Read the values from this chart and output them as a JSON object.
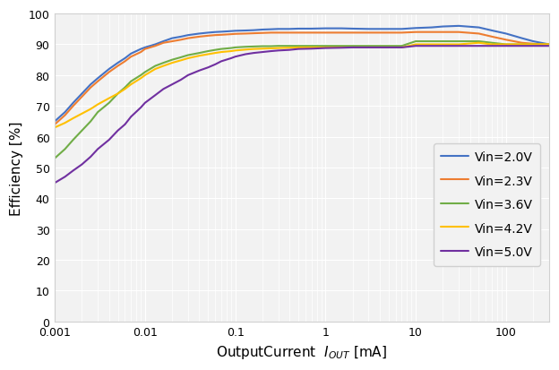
{
  "title": "",
  "xlabel_prefix": "OutputCurrent  ",
  "xlabel_sub": "OUT",
  "xlabel_suffix": " [mA]",
  "ylabel": "Efficiency [%]",
  "xlim": [
    0.001,
    300
  ],
  "ylim": [
    0,
    100
  ],
  "yticks": [
    0,
    10,
    20,
    30,
    40,
    50,
    60,
    70,
    80,
    90,
    100
  ],
  "xtick_labels": {
    "0.001": "0.001",
    "0.01": "0.01",
    "0.1": "0.1",
    "1.0": "1",
    "10.0": "10",
    "100.0": "100"
  },
  "background_color": "#ffffff",
  "plot_bg_color": "#f2f2f2",
  "grid_color": "#ffffff",
  "series": [
    {
      "label": "Vin=2.0V",
      "color": "#4472C4",
      "x": [
        0.001,
        0.0013,
        0.0016,
        0.002,
        0.0025,
        0.003,
        0.004,
        0.005,
        0.006,
        0.007,
        0.009,
        0.01,
        0.013,
        0.016,
        0.02,
        0.025,
        0.03,
        0.04,
        0.05,
        0.06,
        0.07,
        0.09,
        0.1,
        0.13,
        0.16,
        0.2,
        0.25,
        0.3,
        0.4,
        0.5,
        0.7,
        1.0,
        1.5,
        2.0,
        3.0,
        5.0,
        7.0,
        10.0,
        15.0,
        20.0,
        30.0,
        50.0,
        70.0,
        100.0,
        150.0,
        200.0,
        300.0
      ],
      "y": [
        65,
        68,
        71,
        74,
        77,
        79,
        82,
        84,
        85.5,
        87,
        88.5,
        89,
        90,
        91,
        92,
        92.5,
        93,
        93.5,
        93.8,
        94,
        94.1,
        94.3,
        94.4,
        94.5,
        94.6,
        94.8,
        94.9,
        95.0,
        95.0,
        95.1,
        95.1,
        95.2,
        95.2,
        95.1,
        95.0,
        95.0,
        95.0,
        95.3,
        95.5,
        95.8,
        96.0,
        95.5,
        94.5,
        93.5,
        92.0,
        91.0,
        90.0
      ]
    },
    {
      "label": "Vin=2.3V",
      "color": "#ED7D31",
      "x": [
        0.001,
        0.0013,
        0.0016,
        0.002,
        0.0025,
        0.003,
        0.004,
        0.005,
        0.006,
        0.007,
        0.009,
        0.01,
        0.013,
        0.016,
        0.02,
        0.025,
        0.03,
        0.04,
        0.05,
        0.06,
        0.07,
        0.09,
        0.1,
        0.13,
        0.16,
        0.2,
        0.25,
        0.3,
        0.4,
        0.5,
        0.7,
        1.0,
        1.5,
        2.0,
        3.0,
        5.0,
        7.0,
        10.0,
        15.0,
        20.0,
        30.0,
        50.0,
        70.0,
        100.0,
        150.0,
        200.0,
        300.0
      ],
      "y": [
        64,
        67,
        70,
        73,
        76,
        78,
        81,
        83,
        84.5,
        86,
        87.5,
        88.5,
        89.5,
        90.5,
        91,
        91.5,
        92,
        92.5,
        92.8,
        93,
        93.1,
        93.3,
        93.4,
        93.5,
        93.6,
        93.7,
        93.8,
        93.8,
        93.8,
        93.8,
        93.8,
        93.8,
        93.8,
        93.8,
        93.8,
        93.8,
        93.8,
        94.0,
        94.0,
        94.0,
        94.0,
        93.5,
        92.5,
        91.5,
        90.5,
        90.2,
        90.0
      ]
    },
    {
      "label": "Vin=3.6V",
      "color": "#70AD47",
      "x": [
        0.001,
        0.0013,
        0.0016,
        0.002,
        0.0025,
        0.003,
        0.004,
        0.005,
        0.006,
        0.007,
        0.009,
        0.01,
        0.013,
        0.016,
        0.02,
        0.025,
        0.03,
        0.04,
        0.05,
        0.06,
        0.07,
        0.09,
        0.1,
        0.13,
        0.16,
        0.2,
        0.25,
        0.3,
        0.4,
        0.5,
        0.7,
        1.0,
        1.5,
        2.0,
        3.0,
        5.0,
        7.0,
        10.0,
        15.0,
        20.0,
        30.0,
        50.0,
        70.0,
        100.0,
        150.0,
        200.0,
        300.0
      ],
      "y": [
        53,
        56,
        59,
        62,
        65,
        68,
        71,
        74,
        76,
        78,
        80,
        81,
        83,
        84,
        85,
        85.8,
        86.5,
        87.2,
        87.8,
        88.2,
        88.5,
        88.8,
        89.0,
        89.2,
        89.3,
        89.4,
        89.4,
        89.5,
        89.5,
        89.5,
        89.5,
        89.5,
        89.5,
        89.5,
        89.5,
        89.5,
        89.5,
        91.0,
        91.0,
        91.0,
        91.0,
        91.0,
        90.5,
        90.0,
        90.0,
        90.0,
        90.0
      ]
    },
    {
      "label": "Vin=4.2V",
      "color": "#FFC000",
      "x": [
        0.001,
        0.0013,
        0.0016,
        0.002,
        0.0025,
        0.003,
        0.004,
        0.005,
        0.006,
        0.007,
        0.009,
        0.01,
        0.013,
        0.016,
        0.02,
        0.025,
        0.03,
        0.04,
        0.05,
        0.06,
        0.07,
        0.09,
        0.1,
        0.13,
        0.16,
        0.2,
        0.25,
        0.3,
        0.4,
        0.5,
        0.7,
        1.0,
        1.5,
        2.0,
        3.0,
        5.0,
        7.0,
        10.0,
        15.0,
        20.0,
        30.0,
        50.0,
        70.0,
        100.0,
        150.0,
        200.0,
        300.0
      ],
      "y": [
        63,
        64.5,
        66,
        67.5,
        69,
        70.5,
        72.5,
        74,
        75.5,
        77,
        79,
        80,
        82,
        83,
        84,
        84.8,
        85.5,
        86.3,
        86.8,
        87.2,
        87.5,
        87.8,
        88.0,
        88.3,
        88.5,
        88.6,
        88.7,
        88.8,
        88.9,
        89.0,
        89.0,
        89.0,
        89.0,
        89.0,
        89.0,
        89.0,
        89.0,
        90.0,
        90.0,
        90.0,
        90.0,
        90.5,
        90.0,
        90.0,
        90.0,
        90.0,
        90.0
      ]
    },
    {
      "label": "Vin=5.0V",
      "color": "#7030A0",
      "x": [
        0.001,
        0.0013,
        0.0016,
        0.002,
        0.0025,
        0.003,
        0.004,
        0.005,
        0.006,
        0.007,
        0.009,
        0.01,
        0.013,
        0.016,
        0.02,
        0.025,
        0.03,
        0.04,
        0.05,
        0.06,
        0.07,
        0.09,
        0.1,
        0.13,
        0.16,
        0.2,
        0.25,
        0.3,
        0.4,
        0.5,
        0.7,
        1.0,
        1.5,
        2.0,
        3.0,
        5.0,
        7.0,
        10.0,
        15.0,
        20.0,
        30.0,
        50.0,
        70.0,
        100.0,
        150.0,
        200.0,
        300.0
      ],
      "y": [
        45,
        47,
        49,
        51,
        53.5,
        56,
        59,
        62,
        64,
        66.5,
        69.5,
        71,
        73.5,
        75.5,
        77,
        78.5,
        80,
        81.5,
        82.5,
        83.5,
        84.5,
        85.5,
        86.0,
        86.8,
        87.2,
        87.5,
        87.8,
        88.0,
        88.2,
        88.5,
        88.6,
        88.8,
        88.9,
        89.0,
        89.0,
        89.0,
        89.0,
        89.5,
        89.5,
        89.5,
        89.5,
        89.5,
        89.5,
        89.5,
        89.5,
        89.5,
        89.5
      ]
    }
  ]
}
